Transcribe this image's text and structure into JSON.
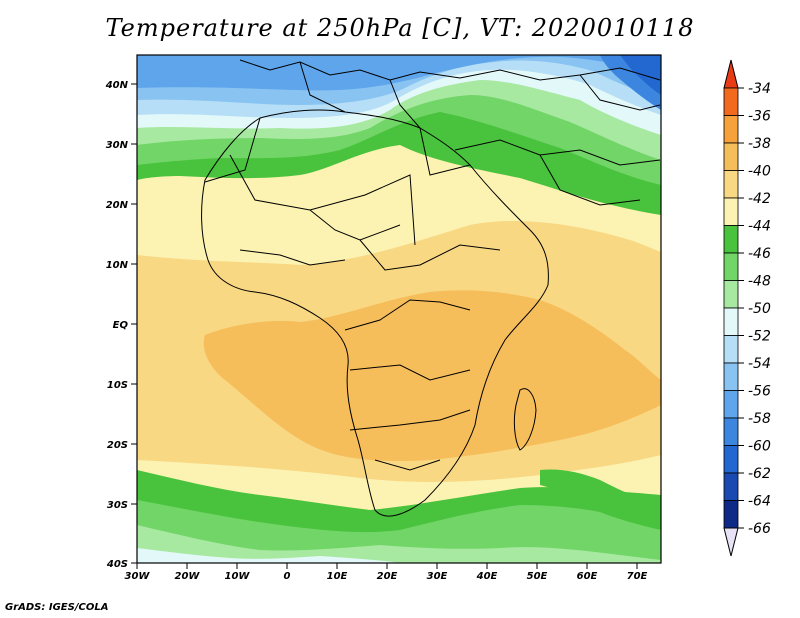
{
  "title": "Temperature at 250hPa [C], VT: 2020010118",
  "footer": "GrADS: IGES/COLA",
  "map": {
    "lon_ticks": [
      "30W",
      "20W",
      "10W",
      "0",
      "10E",
      "20E",
      "30E",
      "40E",
      "50E",
      "60E",
      "70E"
    ],
    "lat_ticks": [
      "40N",
      "30N",
      "20N",
      "10N",
      "EQ",
      "10S",
      "20S",
      "30S",
      "40S"
    ]
  },
  "colorbar": {
    "labels": [
      "-34",
      "-36",
      "-38",
      "-40",
      "-42",
      "-44",
      "-46",
      "-48",
      "-50",
      "-52",
      "-54",
      "-56",
      "-58",
      "-60",
      "-62",
      "-64",
      "-66"
    ],
    "colors": {
      "above_-34": "#e83a14",
      "-36_-34": "#f16a1d",
      "-38_-36": "#f7a13c",
      "-40_-38": "#f6bd5b",
      "-42_-40": "#f8d883",
      "-44_-42": "#fcf2b1",
      "-46_-44": "#49c33d",
      "-48_-46": "#72d567",
      "-50_-48": "#a7e9a1",
      "-52_-50": "#e3f8f8",
      "-54_-52": "#b6def7",
      "-56_-54": "#89c3f1",
      "-58_-56": "#5ea5eb",
      "-60_-58": "#3d86df",
      "-62_-60": "#2268d0",
      "-64_-62": "#1a4ab1",
      "-66_-64": "#0f2a86",
      "below_-66": "#e7e2f6"
    }
  }
}
